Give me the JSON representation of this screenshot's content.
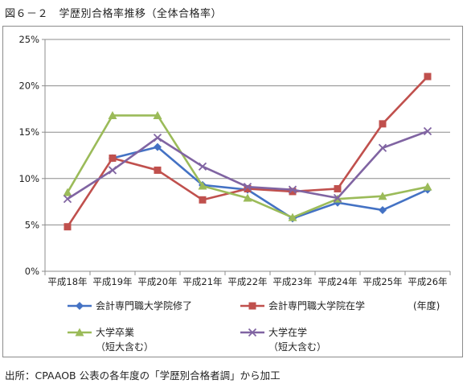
{
  "figure_title": "図６－２　学歴別合格率推移（全体合格率）",
  "source_note": "出所：CPAAOB 公表の各年度の「学歴別合格者調」から加工",
  "chart_data": {
    "type": "line",
    "categories": [
      "平成18年",
      "平成19年",
      "平成20年",
      "平成21年",
      "平成22年",
      "平成23年",
      "平成24年",
      "平成25年",
      "平成26年"
    ],
    "x_unit": "(年度)",
    "ylim": [
      0,
      25
    ],
    "yticks": [
      0,
      5,
      10,
      15,
      20,
      25
    ],
    "ytick_labels": [
      "0%",
      "5%",
      "10%",
      "15%",
      "20%",
      "25%"
    ],
    "grid": "horizontal",
    "legend_position": "bottom",
    "series": [
      {
        "name": "会計専門職大学院修了",
        "name_line2": "",
        "color": "#4472c4",
        "marker": "diamond",
        "values": [
          null,
          12.2,
          13.4,
          9.3,
          8.8,
          5.7,
          7.4,
          6.6,
          8.8
        ]
      },
      {
        "name": "会計専門職大学院在学",
        "name_line2": "",
        "color": "#c0504d",
        "marker": "square",
        "values": [
          4.8,
          12.2,
          10.9,
          7.7,
          8.9,
          8.6,
          8.9,
          15.9,
          21.0
        ]
      },
      {
        "name": "大学卒業",
        "name_line2": "（短大含む）",
        "color": "#9bbb59",
        "marker": "triangle",
        "values": [
          8.5,
          16.8,
          16.8,
          9.2,
          7.9,
          5.8,
          7.8,
          8.1,
          9.1
        ]
      },
      {
        "name": "大学在学",
        "name_line2": "（短大含む）",
        "color": "#8064a2",
        "marker": "x",
        "values": [
          7.8,
          10.9,
          14.4,
          11.3,
          9.1,
          8.8,
          7.9,
          13.3,
          15.1
        ]
      }
    ]
  }
}
